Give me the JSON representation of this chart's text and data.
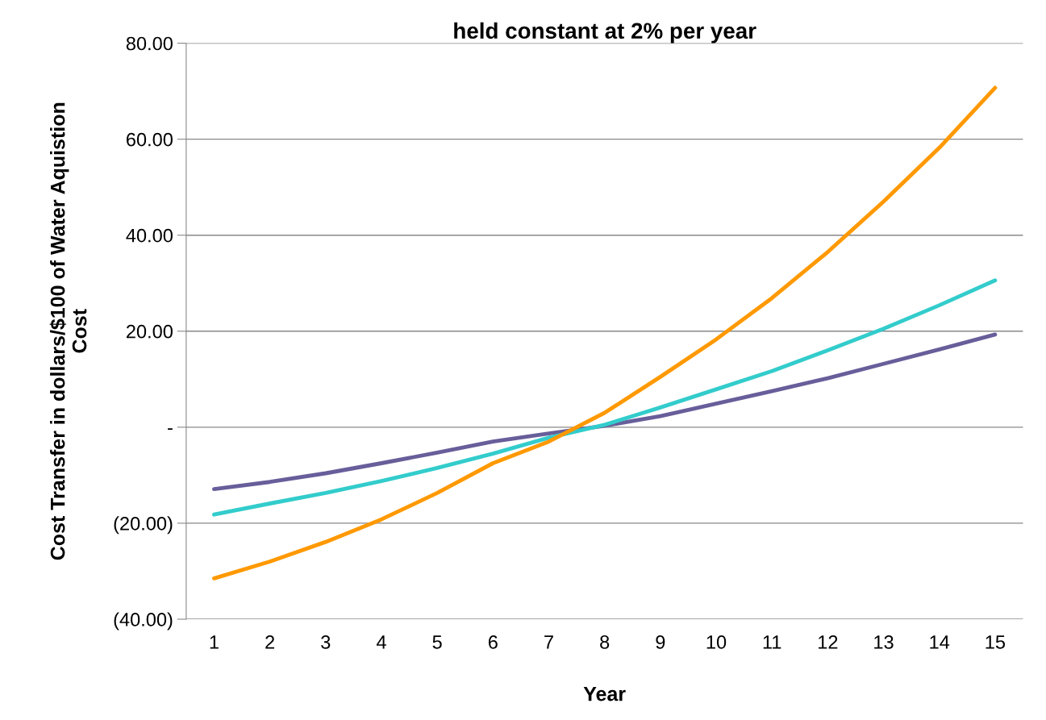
{
  "chart_data": {
    "type": "line",
    "title": "held constant at 2% per year",
    "xlabel": "Year",
    "ylabel": "Cost Transfer in dollars/$100 of Water Aquistion\nCost",
    "categories": [
      "1",
      "2",
      "3",
      "4",
      "5",
      "6",
      "7",
      "8",
      "9",
      "10",
      "11",
      "12",
      "13",
      "14",
      "15"
    ],
    "series": [
      {
        "color": "#675e9a",
        "values": [
          -12.9,
          -11.4,
          -9.6,
          -7.5,
          -5.3,
          -3.0,
          -1.3,
          0.3,
          2.3,
          4.9,
          7.5,
          10.2,
          13.2,
          16.2,
          19.3
        ]
      },
      {
        "color": "#33cccc",
        "values": [
          -18.2,
          -15.9,
          -13.7,
          -11.2,
          -8.5,
          -5.5,
          -2.2,
          0.5,
          4.1,
          7.9,
          11.7,
          16.0,
          20.5,
          25.4,
          30.6
        ]
      },
      {
        "color": "#ff9900",
        "values": [
          -31.5,
          -28.0,
          -23.9,
          -19.2,
          -13.7,
          -7.5,
          -3.0,
          3.0,
          10.5,
          18.3,
          26.9,
          36.5,
          47.0,
          58.2,
          70.7
        ]
      }
    ],
    "ylim": [
      -40,
      80
    ],
    "yticks": [
      {
        "value": -40,
        "label": "(40.00)"
      },
      {
        "value": -20,
        "label": "(20.00)"
      },
      {
        "value": 0,
        "label": "-"
      },
      {
        "value": 20,
        "label": "20.00"
      },
      {
        "value": 40,
        "label": "40.00"
      },
      {
        "value": 60,
        "label": "60.00"
      },
      {
        "value": 80,
        "label": "80.00"
      }
    ],
    "grid": "y",
    "marker": "none",
    "line_style": "solid"
  }
}
